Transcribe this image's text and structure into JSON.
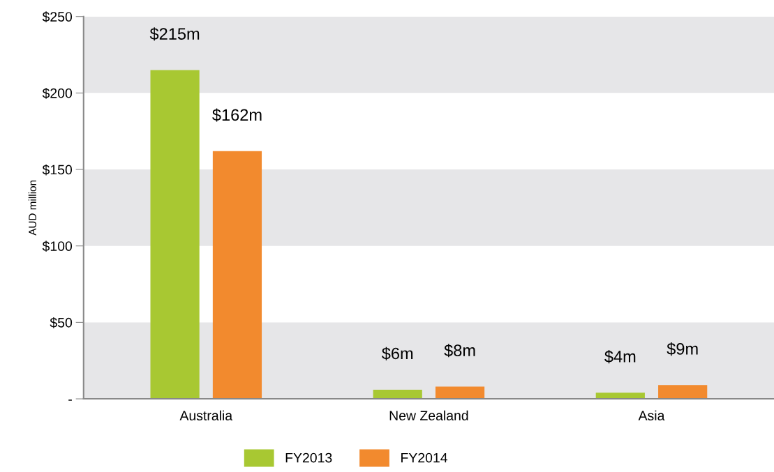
{
  "chart_data": {
    "type": "bar",
    "ylabel": "AUD million",
    "categories": [
      "Australia",
      "New Zealand",
      "Asia"
    ],
    "series": [
      {
        "name": "FY2013",
        "color": "#a8c832",
        "values": [
          215,
          6,
          4
        ],
        "value_labels": [
          "$215m",
          "$6m",
          "$4m"
        ]
      },
      {
        "name": "FY2014",
        "color": "#f28a2e",
        "values": [
          162,
          8,
          9
        ],
        "value_labels": [
          "$162m",
          "$8m",
          "$9m"
        ]
      }
    ],
    "ylim": [
      0,
      250
    ],
    "yticks": [
      {
        "value": 0,
        "label": "-"
      },
      {
        "value": 50,
        "label": "$50"
      },
      {
        "value": 100,
        "label": "$100"
      },
      {
        "value": 150,
        "label": "$150"
      },
      {
        "value": 200,
        "label": "$200"
      },
      {
        "value": 250,
        "label": "$250"
      }
    ],
    "bands": [
      {
        "axis": "y",
        "from": 0,
        "to": 50,
        "color": "#e6e6e8"
      },
      {
        "axis": "y",
        "from": 100,
        "to": 150,
        "color": "#e6e6e8"
      },
      {
        "axis": "y",
        "from": 200,
        "to": 250,
        "color": "#e6e6e8"
      }
    ],
    "legend": "bottom"
  }
}
